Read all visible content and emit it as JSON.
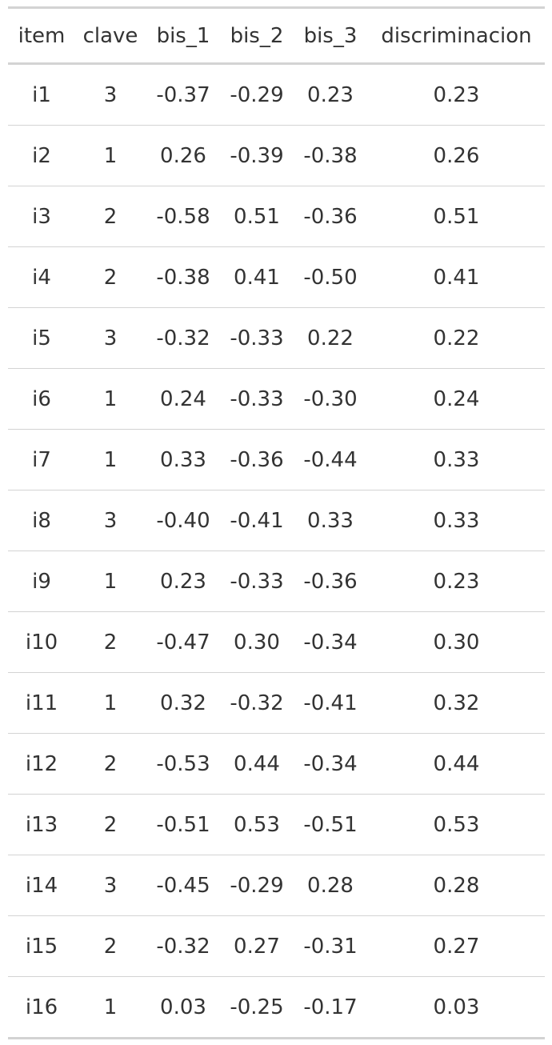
{
  "table": {
    "columns": [
      "item",
      "clave",
      "bis_1",
      "bis_2",
      "bis_3",
      "discriminacion"
    ],
    "rows": [
      [
        "i1",
        "3",
        "-0.37",
        "-0.29",
        "0.23",
        "0.23"
      ],
      [
        "i2",
        "1",
        "0.26",
        "-0.39",
        "-0.38",
        "0.26"
      ],
      [
        "i3",
        "2",
        "-0.58",
        "0.51",
        "-0.36",
        "0.51"
      ],
      [
        "i4",
        "2",
        "-0.38",
        "0.41",
        "-0.50",
        "0.41"
      ],
      [
        "i5",
        "3",
        "-0.32",
        "-0.33",
        "0.22",
        "0.22"
      ],
      [
        "i6",
        "1",
        "0.24",
        "-0.33",
        "-0.30",
        "0.24"
      ],
      [
        "i7",
        "1",
        "0.33",
        "-0.36",
        "-0.44",
        "0.33"
      ],
      [
        "i8",
        "3",
        "-0.40",
        "-0.41",
        "0.33",
        "0.33"
      ],
      [
        "i9",
        "1",
        "0.23",
        "-0.33",
        "-0.36",
        "0.23"
      ],
      [
        "i10",
        "2",
        "-0.47",
        "0.30",
        "-0.34",
        "0.30"
      ],
      [
        "i11",
        "1",
        "0.32",
        "-0.32",
        "-0.41",
        "0.32"
      ],
      [
        "i12",
        "2",
        "-0.53",
        "0.44",
        "-0.34",
        "0.44"
      ],
      [
        "i13",
        "2",
        "-0.51",
        "0.53",
        "-0.51",
        "0.53"
      ],
      [
        "i14",
        "3",
        "-0.45",
        "-0.29",
        "0.28",
        "0.28"
      ],
      [
        "i15",
        "2",
        "-0.32",
        "0.27",
        "-0.31",
        "0.27"
      ],
      [
        "i16",
        "1",
        "0.03",
        "-0.25",
        "-0.17",
        "0.03"
      ]
    ]
  },
  "colors": {
    "text": "#333333",
    "rule": "#d3d3d3",
    "background": "#ffffff"
  }
}
